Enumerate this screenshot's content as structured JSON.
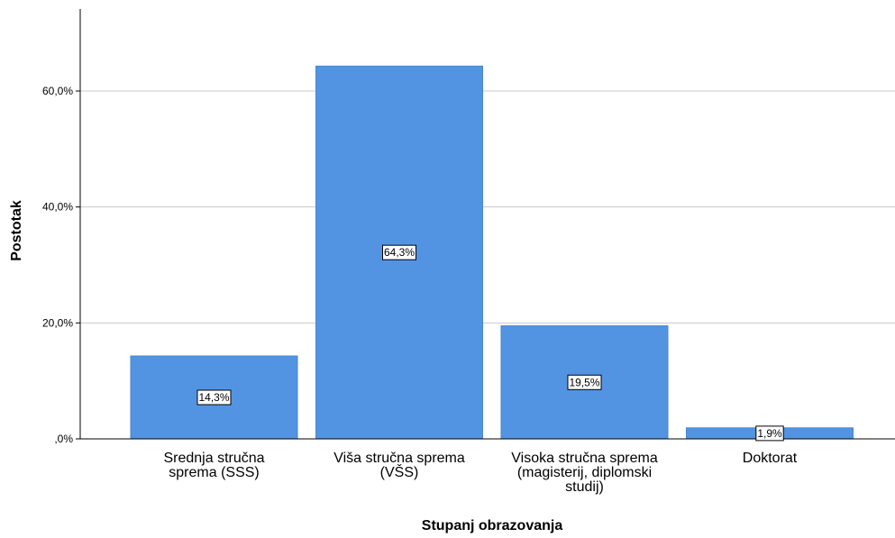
{
  "chart_data": {
    "type": "bar",
    "categories": [
      "Srednja stručna sprema (SSS)",
      "Viša stručna sprema (VŠS)",
      "Visoka stručna sprema (magisterij, diplomski studij)",
      "Doktorat"
    ],
    "category_label_lines": [
      [
        "Srednja stručna",
        "sprema (SSS)"
      ],
      [
        "Viša stručna sprema",
        "(VŠS)"
      ],
      [
        "Visoka stručna sprema",
        "(magisterij, diplomski",
        "studij)"
      ],
      [
        "Doktorat"
      ]
    ],
    "values": [
      14.3,
      64.3,
      19.5,
      1.9
    ],
    "data_labels": [
      "14,3%",
      "64,3%",
      "19,5%",
      "1,9%"
    ],
    "xlabel": "Stupanj obrazovanja",
    "ylabel": "Postotak",
    "yticks": [
      0,
      20,
      40,
      60
    ],
    "ytick_labels": [
      ",0%",
      "20,0%",
      "40,0%",
      "60,0%"
    ],
    "ylim": [
      0,
      73
    ],
    "grid": "horizontal",
    "bar_color": "#5294e2"
  }
}
